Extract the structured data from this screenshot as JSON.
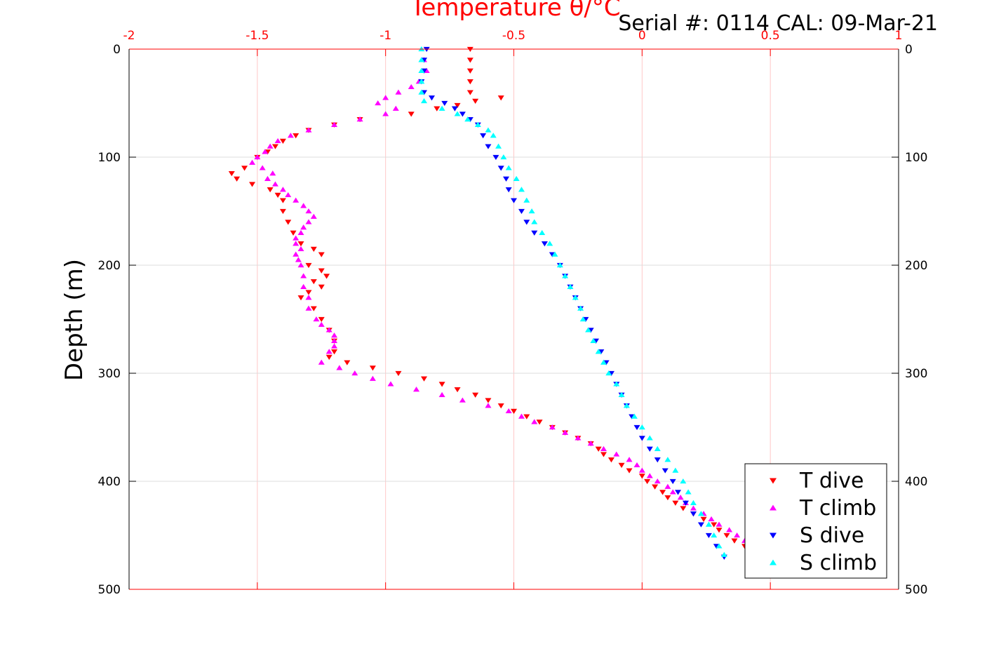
{
  "chart_data": {
    "type": "scatter",
    "title": "",
    "xlabel": "Temperature θ/°C",
    "ylabel": "Depth (m)",
    "annotation": "Serial #: 0114  CAL: 09-Mar-21",
    "xlim": [
      -2,
      1
    ],
    "ylim": [
      0,
      500
    ],
    "y_reversed": true,
    "x_axis_position": "top",
    "grid": true,
    "xticks": [
      "-2",
      "-1.5",
      "-1",
      "-0.5",
      "0",
      "0.5",
      "1"
    ],
    "yticks": [
      "0",
      "100",
      "200",
      "300",
      "400",
      "500"
    ],
    "legend_position": "bottom-right",
    "series": [
      {
        "name": "T dive",
        "color": "#ff0000",
        "marker": "triangle-down",
        "points": [
          [
            -0.67,
            0
          ],
          [
            -0.67,
            10
          ],
          [
            -0.67,
            20
          ],
          [
            -0.67,
            30
          ],
          [
            -0.67,
            40
          ],
          [
            -0.55,
            45
          ],
          [
            -0.65,
            48
          ],
          [
            -0.72,
            52
          ],
          [
            -0.8,
            55
          ],
          [
            -0.9,
            60
          ],
          [
            -1.1,
            65
          ],
          [
            -1.2,
            70
          ],
          [
            -1.3,
            75
          ],
          [
            -1.35,
            80
          ],
          [
            -1.4,
            85
          ],
          [
            -1.43,
            90
          ],
          [
            -1.46,
            95
          ],
          [
            -1.5,
            100
          ],
          [
            -1.55,
            110
          ],
          [
            -1.6,
            115
          ],
          [
            -1.58,
            120
          ],
          [
            -1.52,
            125
          ],
          [
            -1.45,
            130
          ],
          [
            -1.42,
            135
          ],
          [
            -1.4,
            140
          ],
          [
            -1.4,
            150
          ],
          [
            -1.38,
            160
          ],
          [
            -1.36,
            170
          ],
          [
            -1.33,
            180
          ],
          [
            -1.28,
            185
          ],
          [
            -1.25,
            190
          ],
          [
            -1.3,
            200
          ],
          [
            -1.25,
            205
          ],
          [
            -1.23,
            210
          ],
          [
            -1.28,
            215
          ],
          [
            -1.25,
            220
          ],
          [
            -1.3,
            225
          ],
          [
            -1.33,
            230
          ],
          [
            -1.28,
            240
          ],
          [
            -1.25,
            250
          ],
          [
            -1.22,
            260
          ],
          [
            -1.2,
            270
          ],
          [
            -1.2,
            280
          ],
          [
            -1.22,
            285
          ],
          [
            -1.15,
            290
          ],
          [
            -1.05,
            295
          ],
          [
            -0.95,
            300
          ],
          [
            -0.85,
            305
          ],
          [
            -0.78,
            310
          ],
          [
            -0.72,
            315
          ],
          [
            -0.65,
            320
          ],
          [
            -0.6,
            325
          ],
          [
            -0.55,
            330
          ],
          [
            -0.5,
            335
          ],
          [
            -0.45,
            340
          ],
          [
            -0.4,
            345
          ],
          [
            -0.35,
            350
          ],
          [
            -0.3,
            355
          ],
          [
            -0.25,
            360
          ],
          [
            -0.2,
            365
          ],
          [
            -0.17,
            370
          ],
          [
            -0.15,
            375
          ],
          [
            -0.12,
            380
          ],
          [
            -0.08,
            385
          ],
          [
            -0.05,
            390
          ],
          [
            0.0,
            395
          ],
          [
            0.02,
            400
          ],
          [
            0.05,
            405
          ],
          [
            0.08,
            410
          ],
          [
            0.1,
            415
          ],
          [
            0.13,
            420
          ],
          [
            0.16,
            425
          ],
          [
            0.2,
            430
          ],
          [
            0.24,
            435
          ],
          [
            0.28,
            440
          ],
          [
            0.3,
            445
          ],
          [
            0.33,
            450
          ],
          [
            0.36,
            455
          ],
          [
            0.4,
            460
          ]
        ]
      },
      {
        "name": "T climb",
        "color": "#ff00ff",
        "marker": "triangle-up",
        "points": [
          [
            -0.85,
            10
          ],
          [
            -0.84,
            20
          ],
          [
            -0.87,
            30
          ],
          [
            -0.9,
            35
          ],
          [
            -0.95,
            40
          ],
          [
            -1.0,
            45
          ],
          [
            -1.03,
            50
          ],
          [
            -0.96,
            55
          ],
          [
            -1.0,
            60
          ],
          [
            -1.1,
            65
          ],
          [
            -1.2,
            70
          ],
          [
            -1.3,
            75
          ],
          [
            -1.37,
            80
          ],
          [
            -1.42,
            85
          ],
          [
            -1.45,
            90
          ],
          [
            -1.47,
            95
          ],
          [
            -1.5,
            100
          ],
          [
            -1.52,
            105
          ],
          [
            -1.48,
            110
          ],
          [
            -1.44,
            115
          ],
          [
            -1.46,
            120
          ],
          [
            -1.43,
            125
          ],
          [
            -1.4,
            130
          ],
          [
            -1.38,
            135
          ],
          [
            -1.35,
            140
          ],
          [
            -1.32,
            145
          ],
          [
            -1.3,
            150
          ],
          [
            -1.28,
            155
          ],
          [
            -1.3,
            160
          ],
          [
            -1.32,
            165
          ],
          [
            -1.33,
            170
          ],
          [
            -1.35,
            175
          ],
          [
            -1.35,
            180
          ],
          [
            -1.33,
            185
          ],
          [
            -1.35,
            190
          ],
          [
            -1.34,
            195
          ],
          [
            -1.33,
            200
          ],
          [
            -1.32,
            210
          ],
          [
            -1.32,
            220
          ],
          [
            -1.3,
            230
          ],
          [
            -1.3,
            240
          ],
          [
            -1.27,
            250
          ],
          [
            -1.25,
            255
          ],
          [
            -1.22,
            260
          ],
          [
            -1.2,
            265
          ],
          [
            -1.2,
            270
          ],
          [
            -1.2,
            275
          ],
          [
            -1.22,
            280
          ],
          [
            -1.25,
            290
          ],
          [
            -1.18,
            295
          ],
          [
            -1.12,
            300
          ],
          [
            -1.05,
            305
          ],
          [
            -0.98,
            310
          ],
          [
            -0.88,
            315
          ],
          [
            -0.78,
            320
          ],
          [
            -0.7,
            325
          ],
          [
            -0.6,
            330
          ],
          [
            -0.52,
            335
          ],
          [
            -0.47,
            340
          ],
          [
            -0.42,
            345
          ],
          [
            -0.35,
            350
          ],
          [
            -0.3,
            355
          ],
          [
            -0.25,
            360
          ],
          [
            -0.2,
            365
          ],
          [
            -0.15,
            370
          ],
          [
            -0.1,
            375
          ],
          [
            -0.05,
            380
          ],
          [
            -0.02,
            385
          ],
          [
            0.0,
            390
          ],
          [
            0.03,
            395
          ],
          [
            0.06,
            400
          ],
          [
            0.1,
            405
          ],
          [
            0.12,
            410
          ],
          [
            0.15,
            415
          ],
          [
            0.17,
            420
          ],
          [
            0.2,
            425
          ],
          [
            0.24,
            430
          ],
          [
            0.27,
            435
          ],
          [
            0.3,
            440
          ],
          [
            0.34,
            445
          ],
          [
            0.37,
            450
          ],
          [
            0.4,
            455
          ],
          [
            0.43,
            460
          ]
        ]
      },
      {
        "name": "S dive",
        "color": "#0000ff",
        "marker": "triangle-down",
        "points": [
          [
            -0.84,
            0
          ],
          [
            -0.85,
            10
          ],
          [
            -0.85,
            20
          ],
          [
            -0.86,
            30
          ],
          [
            -0.85,
            40
          ],
          [
            -0.82,
            45
          ],
          [
            -0.77,
            50
          ],
          [
            -0.73,
            55
          ],
          [
            -0.7,
            60
          ],
          [
            -0.67,
            65
          ],
          [
            -0.64,
            70
          ],
          [
            -0.62,
            80
          ],
          [
            -0.6,
            90
          ],
          [
            -0.57,
            100
          ],
          [
            -0.55,
            110
          ],
          [
            -0.53,
            120
          ],
          [
            -0.52,
            130
          ],
          [
            -0.5,
            140
          ],
          [
            -0.47,
            150
          ],
          [
            -0.45,
            160
          ],
          [
            -0.42,
            170
          ],
          [
            -0.38,
            180
          ],
          [
            -0.35,
            190
          ],
          [
            -0.32,
            200
          ],
          [
            -0.3,
            210
          ],
          [
            -0.28,
            220
          ],
          [
            -0.26,
            230
          ],
          [
            -0.24,
            240
          ],
          [
            -0.22,
            250
          ],
          [
            -0.2,
            260
          ],
          [
            -0.18,
            270
          ],
          [
            -0.16,
            280
          ],
          [
            -0.14,
            290
          ],
          [
            -0.12,
            300
          ],
          [
            -0.1,
            310
          ],
          [
            -0.08,
            320
          ],
          [
            -0.06,
            330
          ],
          [
            -0.04,
            340
          ],
          [
            -0.02,
            350
          ],
          [
            0.0,
            360
          ],
          [
            0.03,
            370
          ],
          [
            0.06,
            380
          ],
          [
            0.09,
            390
          ],
          [
            0.12,
            400
          ],
          [
            0.14,
            410
          ],
          [
            0.17,
            420
          ],
          [
            0.2,
            430
          ],
          [
            0.23,
            440
          ],
          [
            0.26,
            450
          ],
          [
            0.29,
            460
          ],
          [
            0.32,
            470
          ]
        ]
      },
      {
        "name": "S climb",
        "color": "#00ffff",
        "marker": "triangle-up",
        "points": [
          [
            -0.86,
            0
          ],
          [
            -0.86,
            10
          ],
          [
            -0.86,
            20
          ],
          [
            -0.86,
            30
          ],
          [
            -0.86,
            40
          ],
          [
            -0.85,
            48
          ],
          [
            -0.78,
            55
          ],
          [
            -0.72,
            60
          ],
          [
            -0.68,
            65
          ],
          [
            -0.64,
            70
          ],
          [
            -0.6,
            75
          ],
          [
            -0.58,
            80
          ],
          [
            -0.56,
            90
          ],
          [
            -0.54,
            100
          ],
          [
            -0.52,
            110
          ],
          [
            -0.49,
            120
          ],
          [
            -0.47,
            130
          ],
          [
            -0.45,
            140
          ],
          [
            -0.43,
            150
          ],
          [
            -0.42,
            160
          ],
          [
            -0.39,
            170
          ],
          [
            -0.36,
            180
          ],
          [
            -0.34,
            190
          ],
          [
            -0.32,
            200
          ],
          [
            -0.3,
            210
          ],
          [
            -0.28,
            220
          ],
          [
            -0.26,
            230
          ],
          [
            -0.24,
            240
          ],
          [
            -0.23,
            250
          ],
          [
            -0.21,
            260
          ],
          [
            -0.19,
            270
          ],
          [
            -0.17,
            280
          ],
          [
            -0.15,
            290
          ],
          [
            -0.13,
            300
          ],
          [
            -0.1,
            310
          ],
          [
            -0.08,
            320
          ],
          [
            -0.06,
            330
          ],
          [
            -0.03,
            340
          ],
          [
            0.0,
            350
          ],
          [
            0.03,
            360
          ],
          [
            0.06,
            370
          ],
          [
            0.1,
            380
          ],
          [
            0.13,
            390
          ],
          [
            0.16,
            400
          ],
          [
            0.18,
            410
          ],
          [
            0.2,
            420
          ],
          [
            0.23,
            430
          ],
          [
            0.26,
            440
          ],
          [
            0.28,
            450
          ],
          [
            0.3,
            460
          ],
          [
            0.32,
            468
          ]
        ]
      }
    ]
  }
}
